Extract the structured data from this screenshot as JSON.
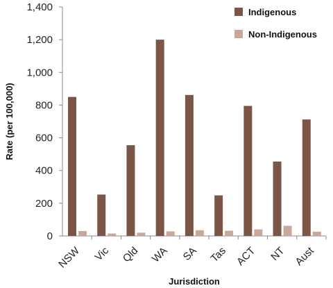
{
  "chart_data": {
    "type": "bar",
    "categories": [
      "NSW",
      "Vic",
      "Qld",
      "WA",
      "SA",
      "Tas",
      "ACT",
      "NT",
      "Aust"
    ],
    "series": [
      {
        "name": "Indigenous",
        "color": "#7b5646",
        "values": [
          850,
          253,
          555,
          1200,
          862,
          248,
          795,
          455,
          712
        ]
      },
      {
        "name": "Non-Indigenous",
        "color": "#c9a79b",
        "values": [
          30,
          15,
          20,
          28,
          35,
          32,
          40,
          62,
          26
        ]
      }
    ],
    "title": "",
    "xlabel": "Jurisdiction",
    "ylabel": "Rate (per 100,000)",
    "ylim": [
      0,
      1400
    ],
    "yticks": [
      0,
      200,
      400,
      600,
      800,
      1000,
      1200,
      1400
    ],
    "ytick_labels": [
      "0",
      "200",
      "400",
      "600",
      "800",
      "1,000",
      "1,200",
      "1,400"
    ],
    "grid": false,
    "legend_position": "top-right"
  }
}
